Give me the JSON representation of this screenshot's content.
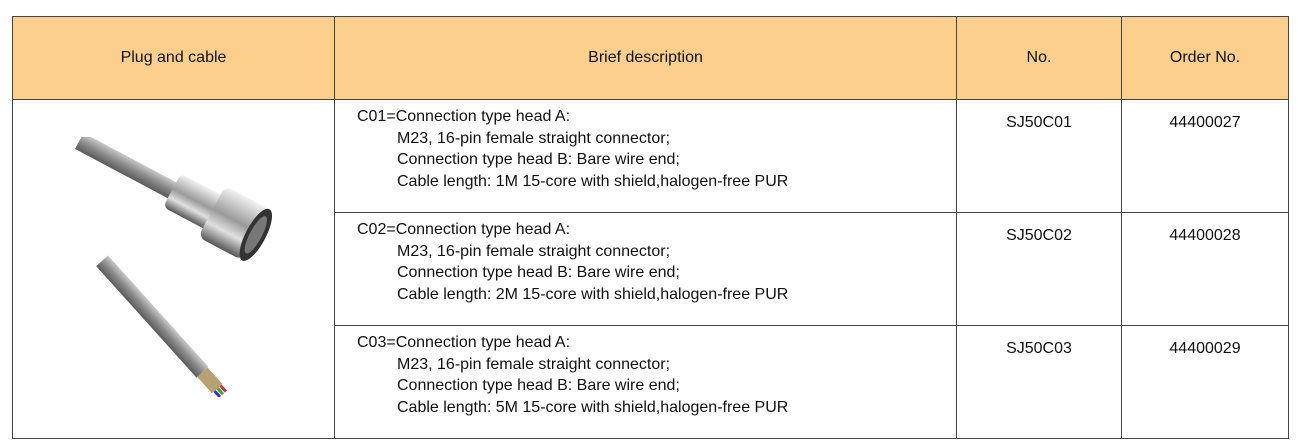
{
  "table": {
    "columns": [
      "Plug and cable",
      "Brief description",
      "No.",
      "Order No."
    ],
    "rows": [
      {
        "description": [
          "C01=Connection type head A:",
          "M23, 16-pin female straight connector;",
          "Connection type head B: Bare wire end;",
          "Cable length: 1M 15-core with shield,halogen-free PUR"
        ],
        "no": "SJ50C01",
        "order_no": "44400027"
      },
      {
        "description": [
          "C02=Connection type head A:",
          "M23, 16-pin female straight connector;",
          "Connection type head B: Bare wire end;",
          "Cable length: 2M 15-core with shield,halogen-free PUR"
        ],
        "no": "SJ50C02",
        "order_no": "44400028"
      },
      {
        "description": [
          "C03=Connection type head A:",
          "M23, 16-pin female straight connector;",
          "Connection type head B: Bare wire end;",
          "Cable length: 5M 15-core with shield,halogen-free PUR"
        ],
        "no": "SJ50C03",
        "order_no": "44400029"
      }
    ]
  }
}
